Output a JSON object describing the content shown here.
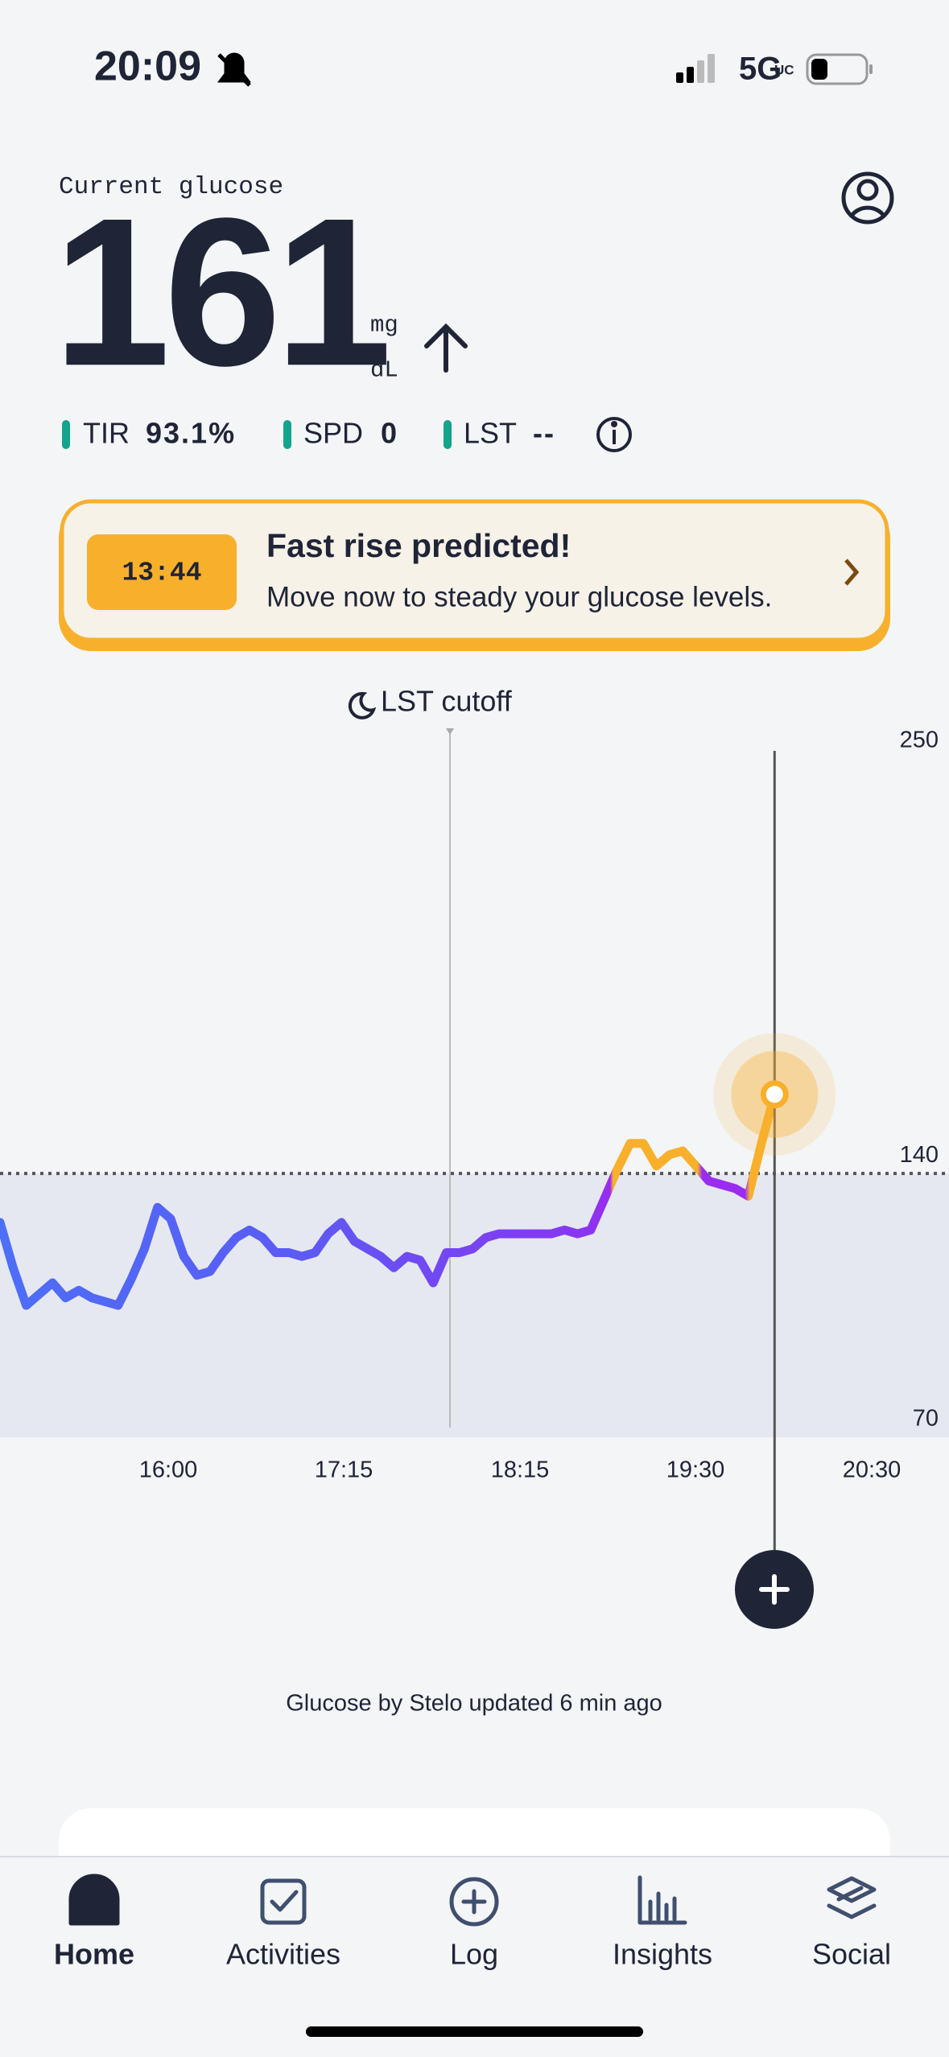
{
  "status_bar": {
    "time": "20:09",
    "network": "5G",
    "network_suffix": "UC"
  },
  "header": {
    "label": "Current glucose",
    "value": 161,
    "unit_top": "mg",
    "unit_bottom": "dL"
  },
  "stats": [
    {
      "name": "TIR",
      "value": "93.1%"
    },
    {
      "name": "SPD",
      "value": "0"
    },
    {
      "name": "LST",
      "value": "--"
    }
  ],
  "alert": {
    "timer": "13:44",
    "title": "Fast rise predicted!",
    "message": "Move now to steady your glucose levels."
  },
  "chart_data": {
    "type": "line",
    "annotation": "LST cutoff",
    "x_labels": [
      "16:00",
      "17:15",
      "18:15",
      "19:30",
      "20:30"
    ],
    "values": [
      127,
      115,
      105,
      108,
      111,
      107,
      109,
      107,
      106,
      105,
      112,
      120,
      131,
      128,
      118,
      113,
      114,
      119,
      123,
      125,
      123,
      119,
      119,
      118,
      119,
      124,
      127,
      122,
      120,
      118,
      115,
      118,
      117,
      111,
      119,
      119,
      120,
      123,
      124,
      124,
      124,
      124,
      124,
      125,
      124,
      125,
      133,
      141,
      148,
      148,
      142,
      145,
      146,
      142,
      138,
      137,
      136,
      134,
      148,
      161
    ],
    "ylim": [
      70,
      250
    ],
    "yticks": [
      70,
      140,
      250
    ],
    "target_range": [
      70,
      140
    ]
  },
  "footer_note": "Glucose by Stelo updated 6 min ago",
  "tabs": [
    "Home",
    "Activities",
    "Log",
    "Insights",
    "Social"
  ]
}
